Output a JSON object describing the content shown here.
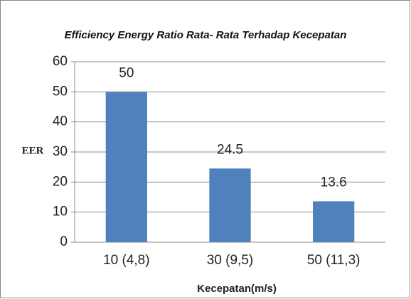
{
  "chart_data": {
    "type": "bar",
    "title": "Efficiency Energy Ratio Rata- Rata Terhadap Kecepatan",
    "x_label": "Kecepatan(m/s)",
    "y_label": "EER",
    "categories": [
      "10 (4,8)",
      "30 (9,5)",
      "50 (11,3)"
    ],
    "values": [
      50,
      24.5,
      13.6
    ],
    "color": "#4f81bd",
    "ylim": [
      0,
      60
    ],
    "yticks": [
      0,
      10,
      20,
      30,
      40,
      50,
      60
    ],
    "grid": true
  }
}
